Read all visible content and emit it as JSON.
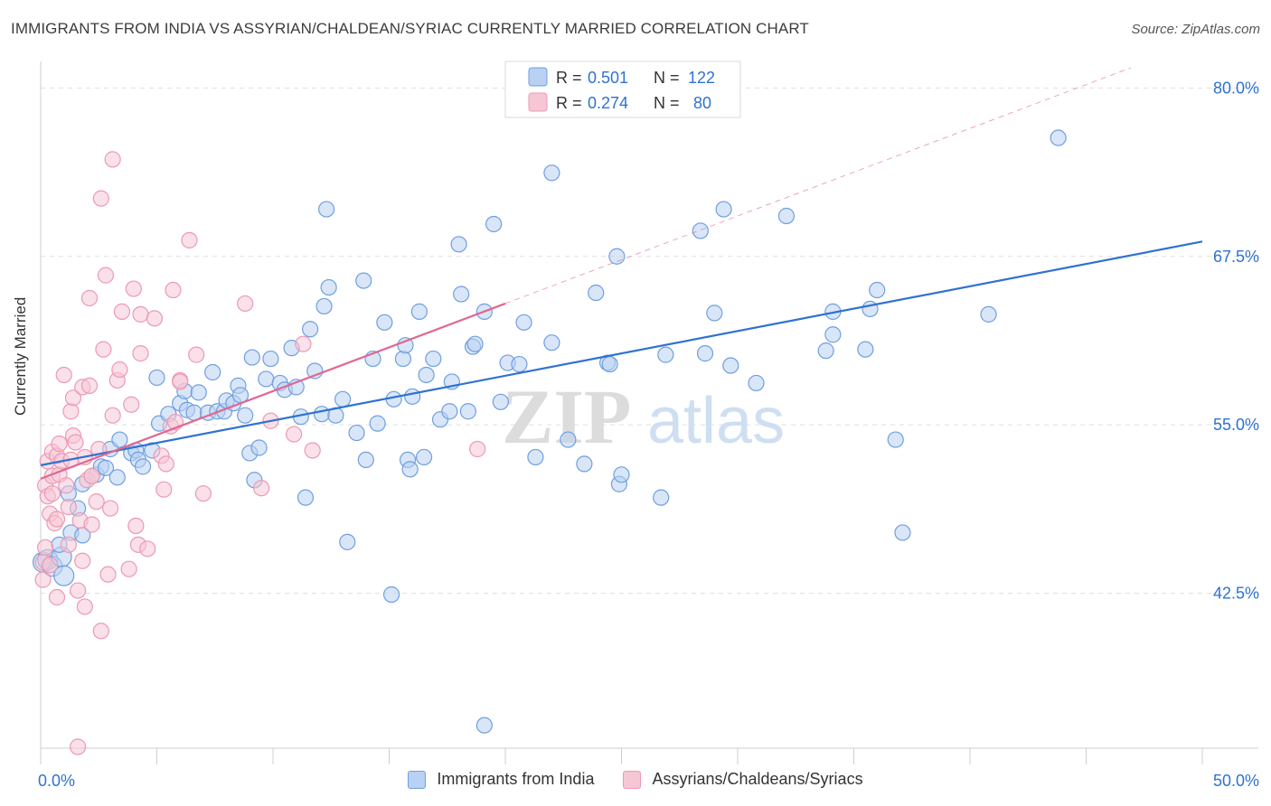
{
  "header": {
    "title": "IMMIGRANTS FROM INDIA VS ASSYRIAN/CHALDEAN/SYRIAC CURRENTLY MARRIED CORRELATION CHART",
    "source": "Source: ZipAtlas.com"
  },
  "watermark": {
    "zip": "ZIP",
    "atlas": "atlas"
  },
  "legend_top": {
    "rows": [
      {
        "r_label": "R =",
        "r_value": "0.501",
        "n_label": "N =",
        "n_value": "122"
      },
      {
        "r_label": "R =",
        "r_value": "0.274",
        "n_label": "N =",
        "n_value": "80"
      }
    ]
  },
  "chart_data": {
    "type": "scatter",
    "xlabel": "",
    "ylabel": "Currently Married",
    "xlim": [
      0,
      50
    ],
    "ylim": [
      31,
      81.5
    ],
    "x_tick_labels": [
      "0.0%",
      "50.0%"
    ],
    "y_ticks": [
      42.5,
      55.0,
      67.5,
      80.0
    ],
    "y_tick_labels": [
      "42.5%",
      "55.0%",
      "67.5%",
      "80.0%"
    ],
    "grid": true,
    "legend_position": "top-center",
    "series": [
      {
        "name": "Immigrants from India",
        "color": "#6f9fe0",
        "fill": "#b9d1f2",
        "line_color": "#2f72d0",
        "r": 0.501,
        "n": 122,
        "trend": {
          "x": [
            0,
            50
          ],
          "y": [
            52.0,
            68.6
          ]
        },
        "points": [
          [
            0.1,
            44.8
          ],
          [
            0.3,
            45.0
          ],
          [
            0.5,
            44.5
          ],
          [
            0.9,
            45.2
          ],
          [
            1.0,
            43.8
          ],
          [
            0.8,
            46.1
          ],
          [
            1.3,
            47.0
          ],
          [
            1.8,
            46.8
          ],
          [
            1.2,
            49.9
          ],
          [
            1.8,
            50.6
          ],
          [
            1.6,
            48.8
          ],
          [
            2.4,
            51.3
          ],
          [
            2.6,
            51.9
          ],
          [
            2.8,
            51.8
          ],
          [
            3.0,
            53.2
          ],
          [
            3.3,
            51.1
          ],
          [
            3.4,
            53.9
          ],
          [
            3.9,
            52.9
          ],
          [
            4.1,
            53.1
          ],
          [
            4.2,
            52.4
          ],
          [
            4.4,
            51.9
          ],
          [
            4.8,
            53.1
          ],
          [
            5.0,
            58.5
          ],
          [
            5.1,
            55.1
          ],
          [
            5.5,
            55.8
          ],
          [
            6.0,
            56.6
          ],
          [
            6.2,
            57.5
          ],
          [
            6.3,
            56.1
          ],
          [
            6.6,
            55.9
          ],
          [
            6.8,
            57.4
          ],
          [
            7.2,
            55.9
          ],
          [
            7.4,
            58.9
          ],
          [
            7.6,
            56.0
          ],
          [
            7.9,
            56.0
          ],
          [
            8.0,
            56.8
          ],
          [
            8.3,
            56.6
          ],
          [
            8.5,
            57.9
          ],
          [
            8.6,
            57.2
          ],
          [
            8.8,
            55.7
          ],
          [
            9.0,
            52.9
          ],
          [
            9.2,
            50.9
          ],
          [
            9.4,
            53.3
          ],
          [
            9.1,
            60.0
          ],
          [
            9.7,
            58.4
          ],
          [
            9.9,
            59.9
          ],
          [
            10.3,
            58.1
          ],
          [
            10.5,
            57.6
          ],
          [
            10.8,
            60.7
          ],
          [
            11.0,
            57.8
          ],
          [
            11.2,
            55.6
          ],
          [
            11.4,
            49.6
          ],
          [
            11.6,
            62.1
          ],
          [
            11.8,
            59.0
          ],
          [
            12.1,
            55.8
          ],
          [
            12.4,
            65.2
          ],
          [
            12.2,
            63.8
          ],
          [
            12.7,
            55.7
          ],
          [
            13.0,
            56.9
          ],
          [
            12.3,
            71.0
          ],
          [
            13.2,
            46.3
          ],
          [
            13.6,
            54.4
          ],
          [
            13.9,
            65.7
          ],
          [
            14.0,
            52.4
          ],
          [
            14.3,
            59.9
          ],
          [
            14.5,
            55.1
          ],
          [
            14.8,
            62.6
          ],
          [
            15.2,
            56.9
          ],
          [
            15.1,
            42.4
          ],
          [
            15.6,
            59.9
          ],
          [
            15.7,
            60.9
          ],
          [
            15.8,
            52.4
          ],
          [
            15.9,
            51.7
          ],
          [
            16.0,
            57.1
          ],
          [
            16.3,
            63.4
          ],
          [
            16.5,
            52.6
          ],
          [
            16.6,
            58.7
          ],
          [
            16.9,
            59.9
          ],
          [
            17.2,
            55.4
          ],
          [
            17.6,
            56.0
          ],
          [
            17.7,
            58.2
          ],
          [
            18.0,
            68.4
          ],
          [
            18.1,
            64.7
          ],
          [
            18.4,
            56.0
          ],
          [
            18.6,
            60.8
          ],
          [
            18.7,
            61.0
          ],
          [
            19.1,
            63.4
          ],
          [
            19.1,
            32.7
          ],
          [
            19.5,
            69.9
          ],
          [
            19.8,
            56.7
          ],
          [
            20.1,
            59.6
          ],
          [
            20.6,
            59.5
          ],
          [
            20.8,
            62.6
          ],
          [
            21.3,
            52.6
          ],
          [
            22.0,
            73.7
          ],
          [
            22.0,
            61.1
          ],
          [
            22.7,
            53.9
          ],
          [
            23.4,
            52.1
          ],
          [
            23.9,
            64.8
          ],
          [
            24.4,
            59.6
          ],
          [
            24.5,
            59.5
          ],
          [
            24.8,
            67.5
          ],
          [
            24.9,
            50.6
          ],
          [
            25.0,
            51.3
          ],
          [
            26.7,
            49.6
          ],
          [
            26.9,
            60.2
          ],
          [
            28.4,
            69.4
          ],
          [
            28.6,
            60.3
          ],
          [
            29.0,
            63.3
          ],
          [
            29.4,
            71.0
          ],
          [
            29.7,
            59.4
          ],
          [
            30.8,
            58.1
          ],
          [
            32.1,
            70.5
          ],
          [
            33.8,
            60.5
          ],
          [
            34.1,
            63.4
          ],
          [
            34.1,
            61.7
          ],
          [
            35.5,
            60.6
          ],
          [
            35.7,
            63.6
          ],
          [
            36.0,
            65.0
          ],
          [
            36.8,
            53.9
          ],
          [
            37.1,
            47.0
          ],
          [
            40.8,
            63.2
          ],
          [
            43.8,
            76.3
          ]
        ]
      },
      {
        "name": "Assyrians/Chaldeans/Syriacs",
        "color": "#ec9ab3",
        "fill": "#f6c6d5",
        "line_color": "#e06892",
        "r": 0.274,
        "n": 80,
        "trend": {
          "x": [
            0,
            20
          ],
          "y": [
            51.0,
            64.0
          ]
        },
        "points": [
          [
            0.1,
            43.5
          ],
          [
            0.1,
            44.8
          ],
          [
            0.2,
            50.5
          ],
          [
            0.3,
            49.7
          ],
          [
            0.3,
            52.3
          ],
          [
            0.4,
            48.4
          ],
          [
            0.5,
            49.9
          ],
          [
            0.5,
            51.2
          ],
          [
            0.5,
            53.0
          ],
          [
            0.6,
            47.7
          ],
          [
            0.7,
            42.2
          ],
          [
            0.7,
            52.7
          ],
          [
            0.7,
            48.0
          ],
          [
            0.8,
            51.3
          ],
          [
            0.8,
            53.6
          ],
          [
            0.9,
            52.3
          ],
          [
            1.0,
            58.7
          ],
          [
            1.1,
            50.5
          ],
          [
            1.2,
            46.1
          ],
          [
            1.2,
            48.9
          ],
          [
            1.3,
            56.0
          ],
          [
            1.3,
            52.4
          ],
          [
            1.4,
            54.2
          ],
          [
            1.4,
            57.0
          ],
          [
            1.5,
            53.7
          ],
          [
            1.6,
            42.7
          ],
          [
            1.6,
            31.1
          ],
          [
            1.7,
            47.9
          ],
          [
            1.8,
            44.9
          ],
          [
            1.8,
            57.8
          ],
          [
            1.9,
            52.6
          ],
          [
            2.0,
            50.9
          ],
          [
            2.1,
            64.4
          ],
          [
            2.1,
            57.9
          ],
          [
            2.2,
            47.6
          ],
          [
            2.2,
            51.2
          ],
          [
            2.2,
            51.2
          ],
          [
            2.4,
            49.3
          ],
          [
            2.5,
            53.2
          ],
          [
            2.6,
            39.7
          ],
          [
            2.6,
            71.8
          ],
          [
            2.7,
            60.6
          ],
          [
            2.8,
            66.1
          ],
          [
            3.0,
            48.8
          ],
          [
            3.1,
            74.7
          ],
          [
            3.1,
            55.7
          ],
          [
            3.3,
            58.3
          ],
          [
            3.4,
            59.1
          ],
          [
            3.5,
            63.4
          ],
          [
            3.8,
            44.3
          ],
          [
            3.9,
            56.5
          ],
          [
            4.0,
            65.1
          ],
          [
            4.1,
            47.5
          ],
          [
            4.2,
            46.1
          ],
          [
            4.3,
            63.2
          ],
          [
            4.3,
            60.3
          ],
          [
            4.6,
            45.8
          ],
          [
            4.9,
            62.9
          ],
          [
            5.2,
            52.7
          ],
          [
            5.3,
            50.2
          ],
          [
            5.4,
            52.1
          ],
          [
            5.6,
            54.9
          ],
          [
            5.7,
            65.0
          ],
          [
            6.0,
            58.3
          ],
          [
            6.0,
            58.2
          ],
          [
            6.4,
            68.7
          ],
          [
            6.7,
            60.2
          ],
          [
            7.0,
            49.9
          ],
          [
            8.8,
            64.0
          ],
          [
            9.5,
            50.3
          ],
          [
            9.9,
            55.3
          ],
          [
            10.9,
            54.3
          ],
          [
            11.3,
            61.0
          ],
          [
            11.7,
            53.1
          ],
          [
            18.8,
            53.2
          ],
          [
            0.2,
            45.9
          ],
          [
            0.4,
            44.6
          ],
          [
            1.9,
            41.5
          ],
          [
            2.9,
            43.9
          ],
          [
            5.8,
            55.2
          ]
        ]
      }
    ]
  }
}
